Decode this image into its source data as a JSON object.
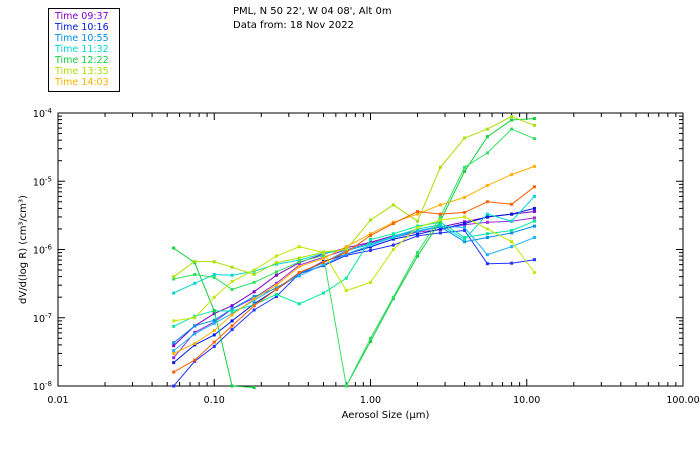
{
  "header": {
    "location": "PML, N 50 22', W 04 08', Alt 0m",
    "date": "Data from: 18 Nov 2022"
  },
  "legend": [
    {
      "label": "Time 09:37",
      "color": "#7f00c8"
    },
    {
      "label": "Time 10:16",
      "color": "#0018e0"
    },
    {
      "label": "Time 10:55",
      "color": "#0090f0"
    },
    {
      "label": "Time 11:32",
      "color": "#00d8d0"
    },
    {
      "label": "Time 12:22",
      "color": "#10d040"
    },
    {
      "label": "Time 13:35",
      "color": "#a8e000"
    },
    {
      "label": "Time 14:03",
      "color": "#ffb000"
    }
  ],
  "chart_data": {
    "type": "line",
    "title": "",
    "xlabel": "Aerosol Size (μm)",
    "ylabel": "dV/d(log R) (cm³/cm³)",
    "xscale": "log",
    "yscale": "log",
    "xlim": [
      0.01,
      100
    ],
    "ylim": [
      1e-08,
      0.0001
    ],
    "x_ticks": [
      {
        "value": 0.01,
        "label": "0.01"
      },
      {
        "value": 0.1,
        "label": "0.10"
      },
      {
        "value": 1,
        "label": "1.00"
      },
      {
        "value": 10,
        "label": "10.00"
      },
      {
        "value": 100,
        "label": "100.00"
      }
    ],
    "y_ticks": [
      {
        "value": 1e-08,
        "base": "10",
        "exp": "-8"
      },
      {
        "value": 1e-07,
        "base": "10",
        "exp": "-7"
      },
      {
        "value": 1e-06,
        "base": "10",
        "exp": "-6"
      },
      {
        "value": 1e-05,
        "base": "10",
        "exp": "-5"
      },
      {
        "value": 0.0001,
        "base": "10",
        "exp": "-4"
      }
    ],
    "x": [
      0.055,
      0.075,
      0.1,
      0.13,
      0.18,
      0.25,
      0.35,
      0.5,
      0.7,
      1.0,
      1.4,
      2.0,
      2.8,
      4.0,
      5.6,
      8.0,
      11.2
    ],
    "series": [
      {
        "name": "Time 09:37",
        "color": "#7f00c8",
        "values": [
          3.9e-08,
          7.6e-08,
          1.15e-07,
          1.5e-07,
          2.4e-07,
          4.2e-07,
          6.4e-07,
          8.6e-07,
          1.06e-06,
          1.28e-06,
          1.58e-06,
          1.87e-06,
          2.13e-06,
          2.54e-06,
          2.98e-06,
          3.29e-06,
          3.61e-06
        ]
      },
      {
        "name": "Time 09:37",
        "color": "#9a2fd8",
        "values": [
          2.6e-08,
          6.1e-08,
          8.7e-08,
          1.34e-07,
          1.95e-07,
          3.2e-07,
          5.9e-07,
          7.7e-07,
          9.9e-07,
          1.25e-06,
          1.5e-06,
          1.8e-06,
          1.96e-06,
          2.3e-06,
          2.5e-06,
          2.6e-06,
          2.9e-06
        ]
      },
      {
        "name": "Time 10:16",
        "color": "#0018e0",
        "values": [
          2.2e-08,
          4e-08,
          5.6e-08,
          9e-08,
          1.6e-07,
          2.6e-07,
          4.4e-07,
          6.7e-07,
          8.5e-07,
          1.09e-06,
          1.42e-06,
          1.67e-06,
          2e-06,
          2.4e-06,
          3e-06,
          3.3e-06,
          4e-06
        ]
      },
      {
        "name": "Time 10:16",
        "color": "#2233ff",
        "values": [
          1e-08,
          2.3e-08,
          3.8e-08,
          6.7e-08,
          1.3e-07,
          2.05e-07,
          4.4e-07,
          5.8e-07,
          8.2e-07,
          9.7e-07,
          1.16e-06,
          1.58e-06,
          1.75e-06,
          1.9e-06,
          6.2e-07,
          6.3e-07,
          7.1e-07
        ]
      },
      {
        "name": "Time 10:55",
        "color": "#0090f0",
        "values": [
          4.3e-08,
          7.6e-08,
          9.2e-08,
          1.35e-07,
          2.05e-07,
          2.7e-07,
          4.4e-07,
          6.4e-07,
          9.6e-07,
          1.2e-06,
          1.5e-06,
          1.85e-06,
          2.15e-06,
          1.3e-06,
          1.5e-06,
          1.75e-06,
          2.2e-06
        ]
      },
      {
        "name": "Time 10:55",
        "color": "#20b0ff",
        "values": [
          3.3e-08,
          5.8e-08,
          8.3e-08,
          1.15e-07,
          1.8e-07,
          2.8e-07,
          4.1e-07,
          6e-07,
          8.6e-07,
          1.15e-06,
          1.52e-06,
          1.87e-06,
          2.2e-06,
          2.1e-06,
          8.4e-07,
          1.1e-06,
          1.5e-06
        ]
      },
      {
        "name": "Time 11:32",
        "color": "#00d8d0",
        "values": [
          2.3e-07,
          3.2e-07,
          4.3e-07,
          4.2e-07,
          4.8e-07,
          6.1e-07,
          7e-07,
          8.8e-07,
          9.9e-07,
          1.2e-06,
          1.55e-06,
          2e-06,
          2.3e-06,
          1.4e-06,
          3.3e-06,
          2.6e-06,
          6e-06
        ]
      },
      {
        "name": "Time 11:32",
        "color": "#00e8a0",
        "values": [
          7.5e-08,
          1.05e-07,
          1.27e-07,
          1.25e-07,
          1.55e-07,
          2.2e-07,
          1.6e-07,
          2.3e-07,
          3.8e-07,
          1.4e-06,
          1.7e-06,
          2.2e-06,
          2.5e-06,
          1.5e-06,
          1.7e-06,
          1.9e-06,
          2.6e-06
        ]
      },
      {
        "name": "Time 12:22",
        "color": "#10d040",
        "values": [
          1.05e-06,
          6.4e-07,
          1.26e-07,
          1e-08,
          9.5e-09,
          null,
          null,
          null,
          1e-08,
          4.5e-08,
          1.9e-07,
          8e-07,
          2.6e-06,
          1.4e-05,
          4.5e-05,
          7.9e-05,
          8.3e-05
        ]
      },
      {
        "name": "Time 12:22",
        "color": "#30e060",
        "values": [
          3.7e-07,
          4.3e-07,
          3.9e-07,
          2.6e-07,
          3.3e-07,
          4.7e-07,
          6.6e-07,
          8.1e-07,
          1e-08,
          5e-08,
          2e-07,
          9e-07,
          3e-06,
          1.6e-05,
          2.6e-05,
          5.8e-05,
          4.2e-05
        ]
      },
      {
        "name": "Time 13:35",
        "color": "#a8e000",
        "values": [
          4e-07,
          6.7e-07,
          6.6e-07,
          5.5e-07,
          4.3e-07,
          6.4e-07,
          7.5e-07,
          9.2e-07,
          1e-06,
          2.7e-06,
          4.5e-06,
          2.6e-06,
          1.6e-05,
          4.3e-05,
          5.8e-05,
          8.9e-05,
          6.6e-05
        ]
      },
      {
        "name": "Time 13:35",
        "color": "#c0e800",
        "values": [
          9e-08,
          1e-07,
          2e-07,
          3.4e-07,
          5e-07,
          8e-07,
          1.1e-06,
          9e-07,
          2.5e-07,
          3.3e-07,
          1e-06,
          2.1e-06,
          2.7e-06,
          3e-06,
          2e-06,
          1.3e-06,
          4.6e-07
        ]
      },
      {
        "name": "Time 14:03",
        "color": "#ffb000",
        "values": [
          3e-08,
          4.2e-08,
          6.5e-08,
          1.1e-07,
          1.9e-07,
          3e-07,
          5.6e-07,
          7.4e-07,
          1.1e-06,
          1.7e-06,
          2.5e-06,
          3.3e-06,
          4.5e-06,
          5.8e-06,
          8.7e-06,
          1.25e-05,
          1.65e-05
        ]
      },
      {
        "name": "Time 14:03",
        "color": "#ff6000",
        "values": [
          1.6e-08,
          2.4e-08,
          4.4e-08,
          7.6e-08,
          1.5e-07,
          2.6e-07,
          4.6e-07,
          6.5e-07,
          9.1e-07,
          1.6e-06,
          2.4e-06,
          3.6e-06,
          3.3e-06,
          3.5e-06,
          5e-06,
          4.6e-06,
          8.3e-06
        ]
      }
    ]
  }
}
